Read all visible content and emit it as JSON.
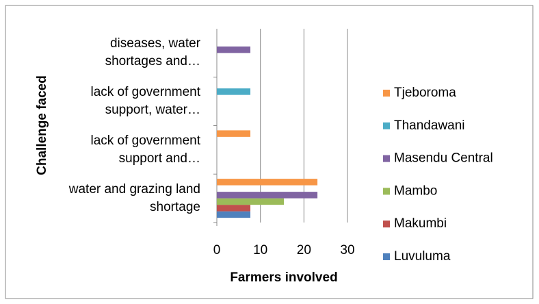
{
  "chart_data": {
    "type": "bar",
    "orientation": "horizontal",
    "x_label": "Farmers involved",
    "y_label": "Challenge faced",
    "categories": [
      "water and grazing land shortage",
      "lack of government support and…",
      "lack of government support, water…",
      "diseases, water shortages and…"
    ],
    "series": [
      {
        "name": "Luvuluma",
        "color": "#4F81BD",
        "values": [
          7.7,
          null,
          null,
          null
        ]
      },
      {
        "name": "Makumbi",
        "color": "#C0504D",
        "values": [
          7.7,
          null,
          null,
          null
        ]
      },
      {
        "name": "Mambo",
        "color": "#9BBB59",
        "values": [
          15.4,
          null,
          null,
          null
        ]
      },
      {
        "name": "Masendu Central",
        "color": "#8064A2",
        "values": [
          23.1,
          null,
          null,
          7.7
        ]
      },
      {
        "name": "Thandawani",
        "color": "#4BACC6",
        "values": [
          null,
          null,
          7.7,
          null
        ]
      },
      {
        "name": "Tjeboroma",
        "color": "#F79646",
        "values": [
          23.1,
          7.7,
          null,
          null
        ]
      }
    ],
    "xlim": [
      0,
      30
    ],
    "xticks": [
      0,
      10,
      20,
      30
    ],
    "grid": true,
    "legend": "right"
  }
}
